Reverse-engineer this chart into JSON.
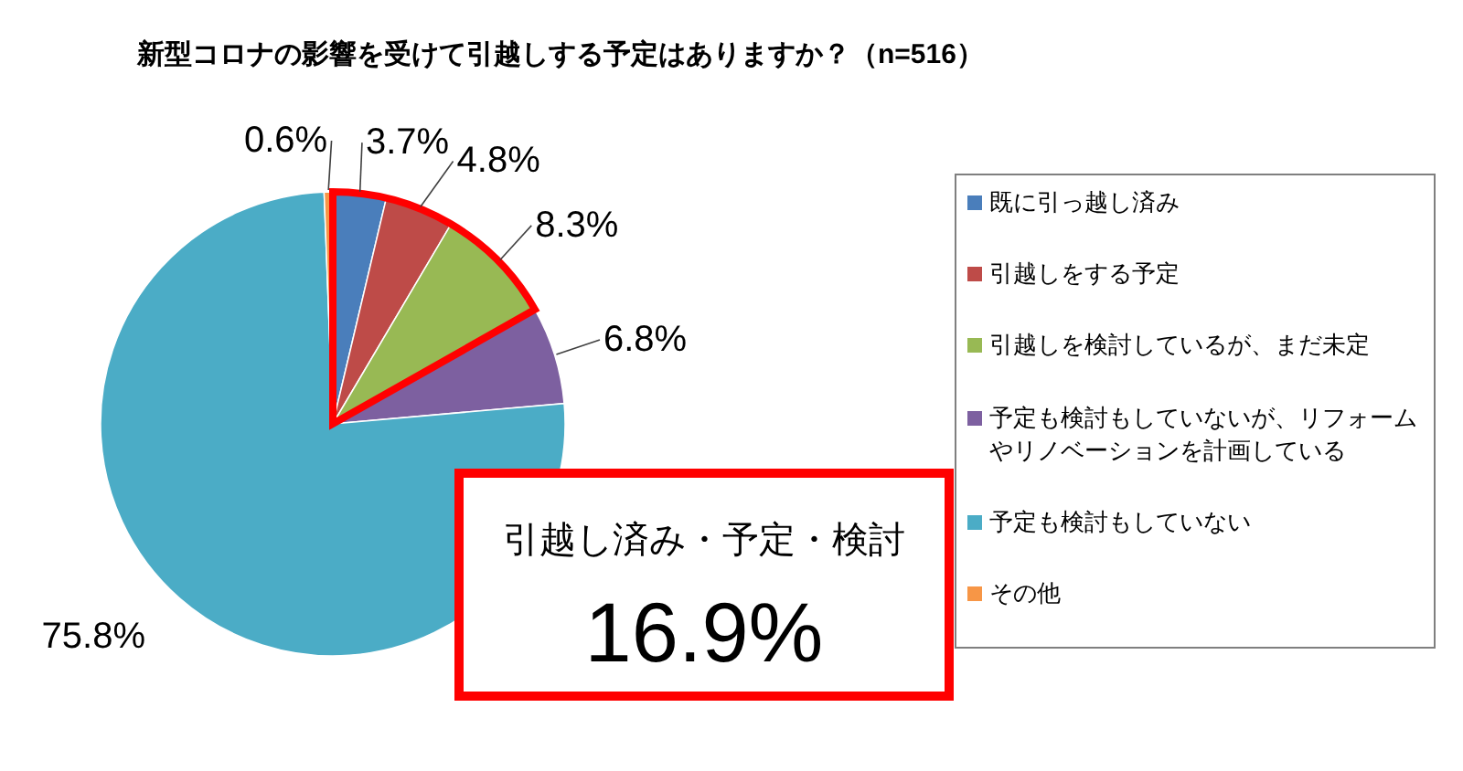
{
  "chart_data": {
    "type": "pie",
    "title": "新型コロナの影響を受けて引越しする予定はありますか？（n=516）",
    "categories": [
      "既に引っ越し済み",
      "引越しをする予定",
      "引越しを検討しているが、まだ未定",
      "予定も検討もしていないが、リフォームやリノベーションを計画している",
      "予定も検討もしていない",
      "その他"
    ],
    "values": [
      3.7,
      4.8,
      8.3,
      6.8,
      75.8,
      0.6
    ],
    "value_labels": [
      "3.7%",
      "4.8%",
      "8.3%",
      "6.8%",
      "75.8%",
      "0.6%"
    ],
    "colors": [
      "#4a7ebb",
      "#be4b48",
      "#98b954",
      "#7d60a0",
      "#4bacc6",
      "#f79646"
    ],
    "legend": "right",
    "annotations": [
      "引越し済み・予定・検討",
      "16.9%"
    ]
  }
}
